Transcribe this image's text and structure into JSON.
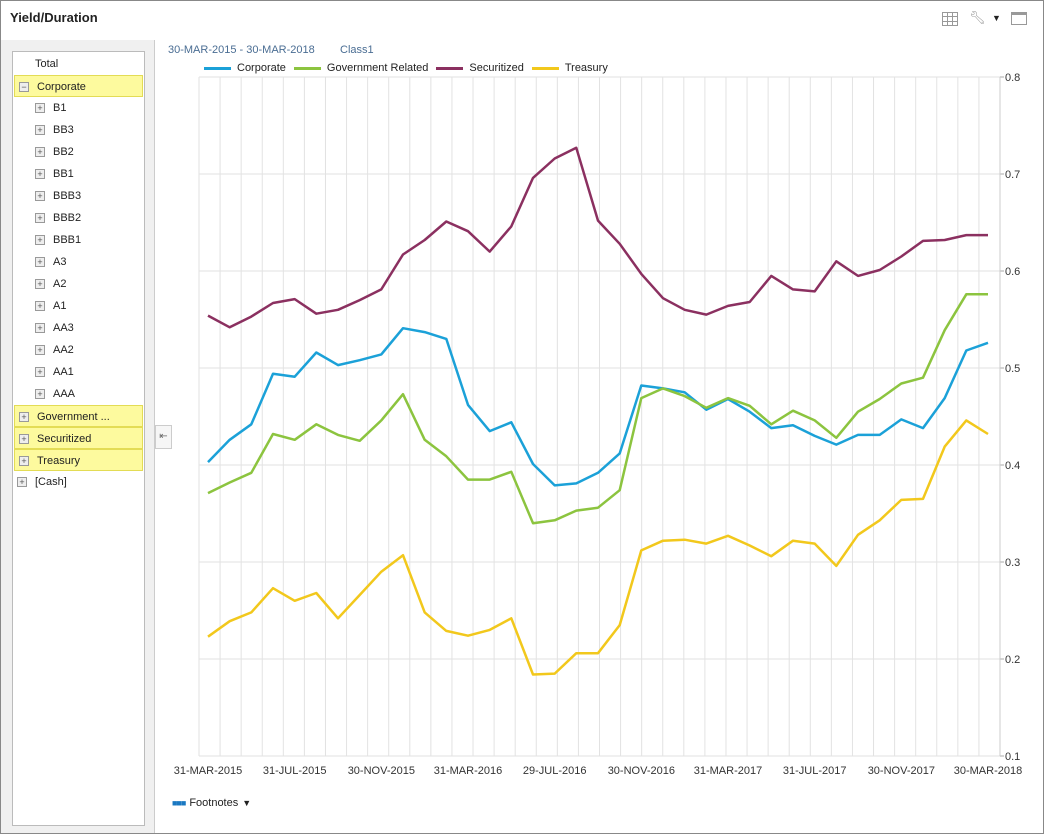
{
  "header": {
    "title": "Yield/Duration",
    "icons": [
      "grid-icon",
      "wrench-icon",
      "dropdown-icon",
      "maximize-icon"
    ]
  },
  "sidebar": {
    "items": [
      {
        "label": "Total",
        "expander": "",
        "highlight": false,
        "indent": 0
      },
      {
        "label": "Corporate",
        "expander": "−",
        "highlight": true,
        "indent": 0
      },
      {
        "label": "B1",
        "expander": "+",
        "highlight": false,
        "indent": 1
      },
      {
        "label": "BB3",
        "expander": "+",
        "highlight": false,
        "indent": 1
      },
      {
        "label": "BB2",
        "expander": "+",
        "highlight": false,
        "indent": 1
      },
      {
        "label": "BB1",
        "expander": "+",
        "highlight": false,
        "indent": 1
      },
      {
        "label": "BBB3",
        "expander": "+",
        "highlight": false,
        "indent": 1
      },
      {
        "label": "BBB2",
        "expander": "+",
        "highlight": false,
        "indent": 1
      },
      {
        "label": "BBB1",
        "expander": "+",
        "highlight": false,
        "indent": 1
      },
      {
        "label": "A3",
        "expander": "+",
        "highlight": false,
        "indent": 1
      },
      {
        "label": "A2",
        "expander": "+",
        "highlight": false,
        "indent": 1
      },
      {
        "label": "A1",
        "expander": "+",
        "highlight": false,
        "indent": 1
      },
      {
        "label": "AA3",
        "expander": "+",
        "highlight": false,
        "indent": 1
      },
      {
        "label": "AA2",
        "expander": "+",
        "highlight": false,
        "indent": 1
      },
      {
        "label": "AA1",
        "expander": "+",
        "highlight": false,
        "indent": 1
      },
      {
        "label": "AAA",
        "expander": "+",
        "highlight": false,
        "indent": 1
      },
      {
        "label": "Government ...",
        "expander": "+",
        "highlight": true,
        "indent": 0
      },
      {
        "label": "Securitized",
        "expander": "+",
        "highlight": true,
        "indent": 0
      },
      {
        "label": "Treasury",
        "expander": "+",
        "highlight": true,
        "indent": 0
      },
      {
        "label": "[Cash]",
        "expander": "+",
        "highlight": false,
        "indent": 0
      }
    ],
    "collapse_icon": "collapse-left-icon"
  },
  "chart_header": {
    "range": "30-MAR-2015 - 30-MAR-2018",
    "class": "Class1"
  },
  "footnotes": {
    "label": "Footnotes"
  },
  "chart_data": {
    "type": "line",
    "ylim": [
      0.1,
      0.8
    ],
    "yticks": [
      "0.1",
      "0.2",
      "0.3",
      "0.4",
      "0.5",
      "0.6",
      "0.7",
      "0.8"
    ],
    "xtick_labels": [
      "31-MAR-2015",
      "31-JUL-2015",
      "30-NOV-2015",
      "31-MAR-2016",
      "29-JUL-2016",
      "30-NOV-2016",
      "31-MAR-2017",
      "31-JUL-2017",
      "30-NOV-2017",
      "30-MAR-2018"
    ],
    "num_points": 37,
    "grid": true,
    "legend_position": "top",
    "series": [
      {
        "name": "Corporate",
        "color": "#1ba1d8",
        "values": [
          0.403,
          0.426,
          0.442,
          0.494,
          0.491,
          0.516,
          0.503,
          0.508,
          0.514,
          0.541,
          0.537,
          0.53,
          0.462,
          0.435,
          0.444,
          0.401,
          0.379,
          0.381,
          0.392,
          0.412,
          0.482,
          0.479,
          0.475,
          0.457,
          0.468,
          0.455,
          0.438,
          0.441,
          0.43,
          0.421,
          0.431,
          0.431,
          0.447,
          0.438,
          0.469,
          0.518,
          0.526
        ]
      },
      {
        "name": "Government Related",
        "color": "#8cc43f",
        "values": [
          0.371,
          0.382,
          0.392,
          0.432,
          0.426,
          0.442,
          0.431,
          0.425,
          0.446,
          0.473,
          0.426,
          0.409,
          0.385,
          0.385,
          0.393,
          0.34,
          0.343,
          0.353,
          0.356,
          0.374,
          0.469,
          0.479,
          0.471,
          0.459,
          0.469,
          0.461,
          0.442,
          0.456,
          0.446,
          0.428,
          0.455,
          0.468,
          0.484,
          0.49,
          0.539,
          0.576,
          0.576
        ]
      },
      {
        "name": "Securitized",
        "color": "#8b3060",
        "values": [
          0.554,
          0.542,
          0.553,
          0.567,
          0.571,
          0.556,
          0.56,
          0.57,
          0.581,
          0.617,
          0.632,
          0.651,
          0.641,
          0.62,
          0.646,
          0.696,
          0.716,
          0.727,
          0.652,
          0.628,
          0.597,
          0.572,
          0.56,
          0.555,
          0.564,
          0.568,
          0.595,
          0.581,
          0.579,
          0.61,
          0.595,
          0.601,
          0.615,
          0.631,
          0.632,
          0.637,
          0.637
        ]
      },
      {
        "name": "Treasury",
        "color": "#f2c81c",
        "values": [
          0.223,
          0.239,
          0.248,
          0.273,
          0.26,
          0.268,
          0.242,
          0.266,
          0.29,
          0.307,
          0.248,
          0.229,
          0.224,
          0.23,
          0.242,
          0.184,
          0.185,
          0.206,
          0.206,
          0.235,
          0.312,
          0.322,
          0.323,
          0.319,
          0.327,
          0.317,
          0.306,
          0.322,
          0.319,
          0.296,
          0.328,
          0.343,
          0.364,
          0.365,
          0.419,
          0.446,
          0.432
        ]
      }
    ]
  }
}
